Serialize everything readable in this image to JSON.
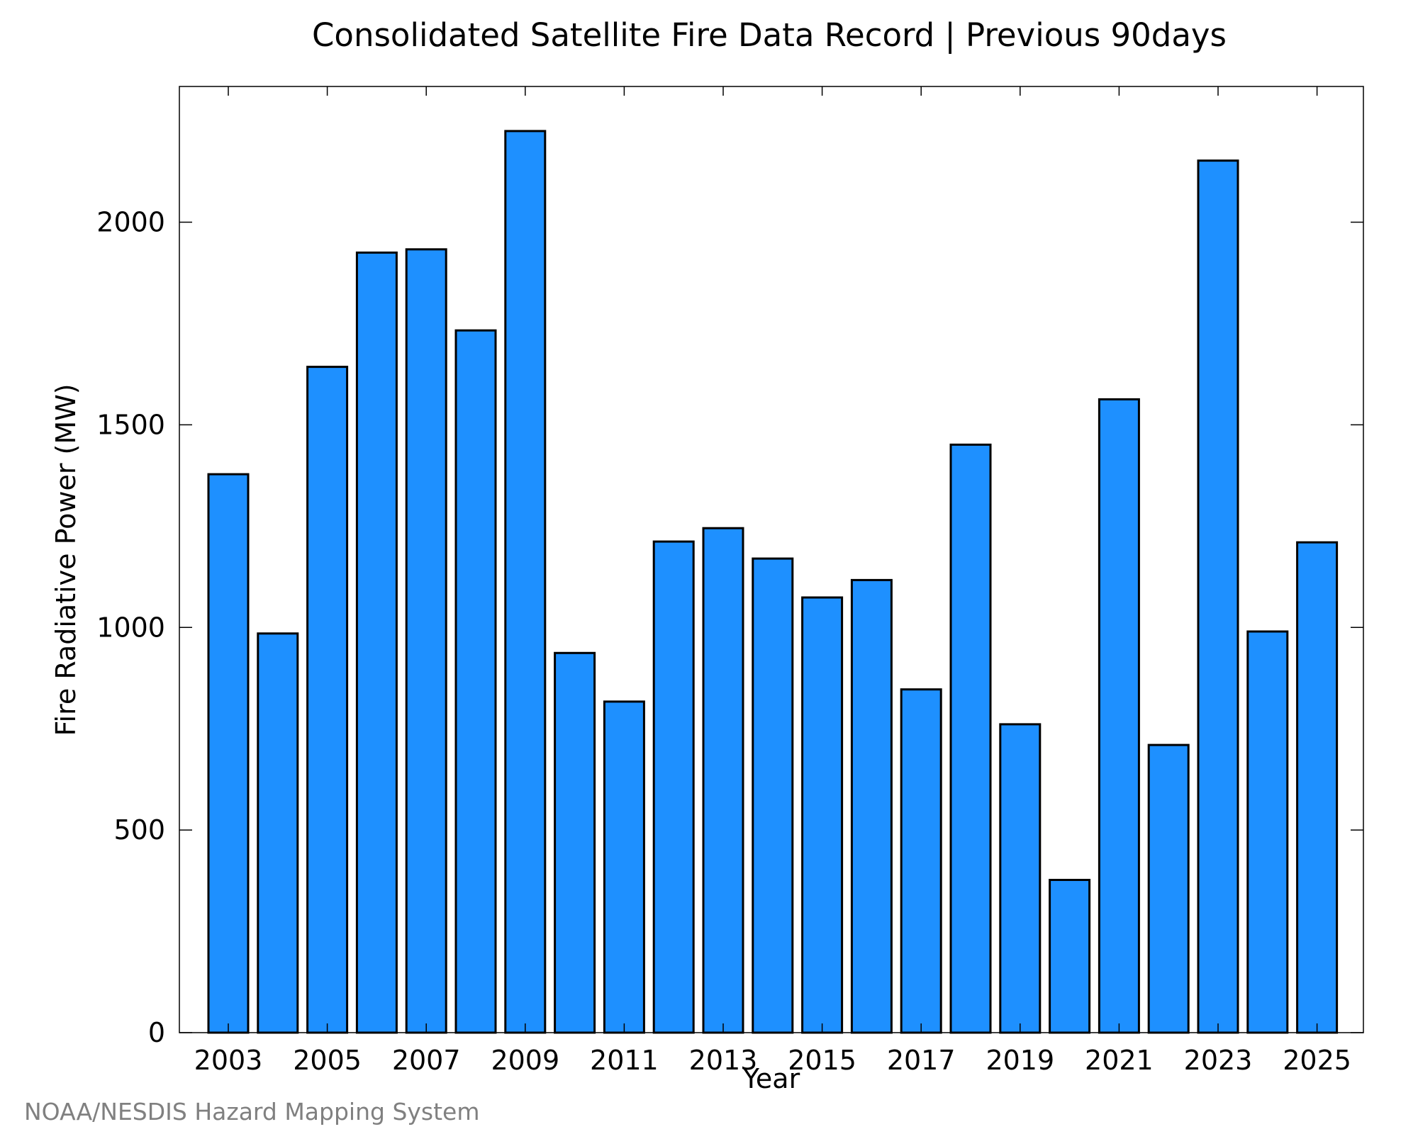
{
  "chart_data": {
    "type": "bar",
    "title": "Consolidated Satellite Fire Data Record | Previous 90days",
    "xlabel": "Year",
    "ylabel": "Fire Radiative Power (MW)",
    "categories": [
      "2003",
      "2004",
      "2005",
      "2006",
      "2007",
      "2008",
      "2009",
      "2010",
      "2011",
      "2012",
      "2013",
      "2014",
      "2015",
      "2016",
      "2017",
      "2018",
      "2019",
      "2020",
      "2021",
      "2022",
      "2023",
      "2024",
      "2025"
    ],
    "values": [
      1378,
      985,
      1643,
      1925,
      1933,
      1733,
      2225,
      937,
      817,
      1212,
      1245,
      1170,
      1074,
      1117,
      847,
      1451,
      761,
      377,
      1563,
      710,
      2152,
      990,
      1210
    ],
    "x_tick_labels": [
      "2003",
      "2005",
      "2007",
      "2009",
      "2011",
      "2013",
      "2015",
      "2017",
      "2019",
      "2021",
      "2023",
      "2025"
    ],
    "y_ticks": [
      0,
      500,
      1000,
      1500,
      2000
    ],
    "ylim": [
      0,
      2335
    ],
    "bar_color": "#1e90ff",
    "edge_color": "#000000",
    "grid": false,
    "legend": "none"
  },
  "credit": "NOAA/NESDIS Hazard Mapping System"
}
